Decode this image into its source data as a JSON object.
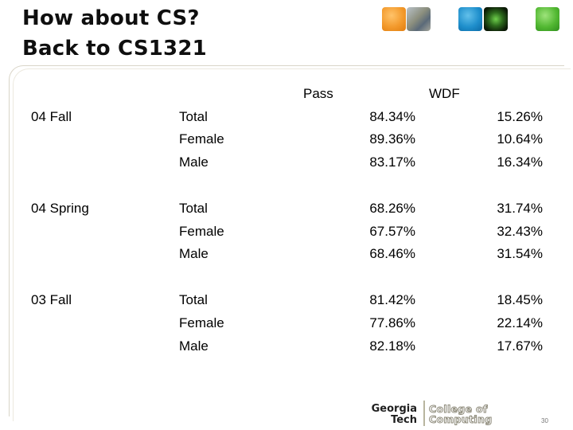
{
  "title": {
    "line1": "How about CS?",
    "line2": "Back to CS1321"
  },
  "table": {
    "headers": {
      "pass": "Pass",
      "wdf": "WDF"
    },
    "groups": [
      {
        "term": "04 Fall",
        "rows": [
          {
            "label": "Total",
            "pass": "84.34%",
            "wdf": "15.26%"
          },
          {
            "label": "Female",
            "pass": "89.36%",
            "wdf": "10.64%"
          },
          {
            "label": "Male",
            "pass": "83.17%",
            "wdf": "16.34%"
          }
        ]
      },
      {
        "term": "04 Spring",
        "rows": [
          {
            "label": "Total",
            "pass": "68.26%",
            "wdf": "31.74%"
          },
          {
            "label": "Female",
            "pass": "67.57%",
            "wdf": "32.43%"
          },
          {
            "label": "Male",
            "pass": "68.46%",
            "wdf": "31.54%"
          }
        ]
      },
      {
        "term": "03 Fall",
        "rows": [
          {
            "label": "Total",
            "pass": "81.42%",
            "wdf": "18.45%"
          },
          {
            "label": "Female",
            "pass": "77.86%",
            "wdf": "22.14%"
          },
          {
            "label": "Male",
            "pass": "82.18%",
            "wdf": "17.67%"
          }
        ]
      }
    ]
  },
  "logo": {
    "line1": "Georgia",
    "line2": "Tech",
    "line3": "College of",
    "line4": "Computing"
  },
  "page_number": "30",
  "decor_squares": [
    "orange-square",
    "campus-photo",
    "blue-square",
    "network-image",
    "green-square"
  ]
}
